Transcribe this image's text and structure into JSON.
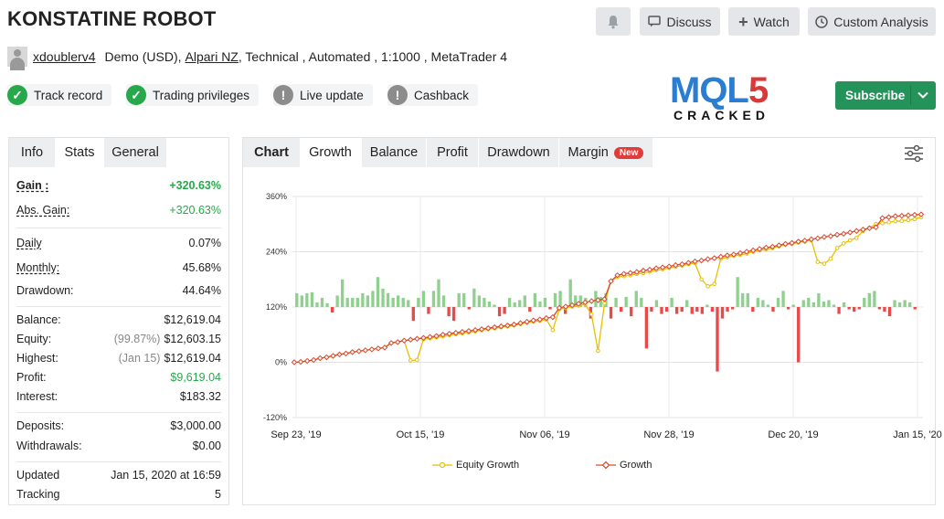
{
  "header": {
    "title": "KONSTATINE ROBOT",
    "discuss_label": "Discuss",
    "watch_label": "Watch",
    "custom_analysis_label": "Custom Analysis"
  },
  "meta": {
    "username": "xdoublerv4",
    "account_type": "Demo (USD),",
    "broker": "Alpari NZ",
    "details": ", Technical , Automated , 1:1000 , MetaTrader 4"
  },
  "badges": [
    {
      "label": "Track record",
      "status": "ok"
    },
    {
      "label": "Trading privileges",
      "status": "ok"
    },
    {
      "label": "Live update",
      "status": "warn"
    },
    {
      "label": "Cashback",
      "status": "warn"
    }
  ],
  "logo": {
    "top_text": "MQL5",
    "bottom_text": "CRACKED",
    "color": "#2a7dd1",
    "accent": "#d73a3a"
  },
  "subscribe_label": "Subscribe",
  "stats_tabs": [
    "Info",
    "Stats",
    "General"
  ],
  "stats": {
    "gain_label": "Gain :",
    "gain_value": "+320.63%",
    "abs_gain_label": "Abs. Gain:",
    "abs_gain_value": "+320.63%",
    "daily_label": "Daily",
    "daily_value": "0.07%",
    "monthly_label": "Monthly:",
    "monthly_value": "45.68%",
    "drawdown_label": "Drawdown:",
    "drawdown_value": "44.64%",
    "balance_label": "Balance:",
    "balance_value": "$12,619.04",
    "equity_label": "Equity:",
    "equity_pct": "(99.87%)",
    "equity_value": "$12,603.15",
    "highest_label": "Highest:",
    "highest_date": "(Jan 15)",
    "highest_value": "$12,619.04",
    "profit_label": "Profit:",
    "profit_value": "$9,619.04",
    "interest_label": "Interest:",
    "interest_value": "$183.32",
    "deposits_label": "Deposits:",
    "deposits_value": "$3,000.00",
    "withdrawals_label": "Withdrawals:",
    "withdrawals_value": "$0.00",
    "updated_label": "Updated",
    "updated_value": "Jan 15, 2020 at 16:59",
    "tracking_label": "Tracking",
    "tracking_value": "5"
  },
  "chart_tabs": [
    "Chart",
    "Growth",
    "Balance",
    "Profit",
    "Drawdown",
    "Margin"
  ],
  "margin_new_badge": "New",
  "chart_data": {
    "type": "line",
    "y_ticks": [
      "360%",
      "240%",
      "120%",
      "0%",
      "-120%"
    ],
    "ylim": [
      -120,
      360
    ],
    "x_ticks": [
      "Sep 23, '19",
      "Oct 15, '19",
      "Nov 06, '19",
      "Nov 28, '19",
      "Dec 20, '19",
      "Jan 15, '20"
    ],
    "series": [
      {
        "name": "Equity Growth",
        "color": "#e8c000",
        "values": [
          0,
          1,
          3,
          5,
          9,
          11,
          14,
          17,
          19,
          22,
          24,
          26,
          28,
          30,
          32,
          42,
          44,
          47,
          4,
          5,
          50,
          52,
          54,
          56,
          59,
          61,
          63,
          65,
          67,
          70,
          72,
          74,
          76,
          78,
          80,
          83,
          86,
          88,
          90,
          93,
          70,
          115,
          118,
          121,
          123,
          126,
          104,
          25,
          128,
          176,
          185,
          187,
          189,
          192,
          194,
          197,
          200,
          202,
          205,
          207,
          210,
          213,
          215,
          180,
          165,
          170,
          225,
          228,
          231,
          233,
          236,
          240,
          243,
          245,
          248,
          252,
          255,
          257,
          260,
          262,
          265,
          218,
          214,
          225,
          248,
          258,
          265,
          270,
          285,
          292,
          300,
          302,
          304,
          306,
          307,
          309,
          311,
          315
        ]
      },
      {
        "name": "Growth",
        "color": "#d94a2e",
        "values": [
          0,
          1,
          3,
          5,
          9,
          11,
          14,
          17,
          19,
          22,
          24,
          26,
          28,
          30,
          32,
          42,
          44,
          47,
          49,
          51,
          53,
          55,
          57,
          60,
          62,
          64,
          66,
          68,
          70,
          72,
          74,
          76,
          78,
          80,
          82,
          85,
          88,
          91,
          93,
          96,
          98,
          118,
          121,
          124,
          127,
          130,
          133,
          135,
          137,
          176,
          189,
          192,
          194,
          196,
          199,
          201,
          204,
          206,
          208,
          211,
          213,
          216,
          219,
          221,
          224,
          226,
          229,
          232,
          234,
          237,
          240,
          243,
          246,
          249,
          251,
          254,
          257,
          259,
          262,
          264,
          267,
          269,
          272,
          274,
          277,
          279,
          282,
          285,
          288,
          291,
          293,
          313,
          315,
          317,
          318,
          319,
          320,
          321
        ]
      }
    ],
    "profit_bars": [
      30,
      25,
      30,
      32,
      10,
      20,
      8,
      -12,
      25,
      60,
      20,
      20,
      20,
      30,
      25,
      35,
      65,
      40,
      30,
      20,
      25,
      20,
      15,
      -30,
      20,
      35,
      -15,
      35,
      60,
      25,
      -20,
      -30,
      30,
      30,
      -5,
      40,
      25,
      20,
      12,
      5,
      -20,
      -15,
      20,
      10,
      15,
      25,
      -10,
      30,
      12,
      20,
      -5,
      30,
      35,
      -15,
      60,
      25,
      25,
      20,
      -25,
      35,
      22,
      30,
      -25,
      20,
      -10,
      22,
      -20,
      35,
      20,
      -90,
      -10,
      15,
      -15,
      -10,
      20,
      -15,
      -10,
      15,
      -15,
      -10,
      -15,
      5,
      -10,
      -140,
      -25,
      -10,
      -5,
      65,
      30,
      30,
      -10,
      20,
      15,
      5,
      -10,
      20,
      35,
      -5,
      5,
      -120,
      15,
      20,
      10,
      30,
      12,
      15,
      5,
      -15,
      10,
      -5,
      -10,
      -5,
      20,
      30,
      35,
      -5,
      -10,
      -20,
      15,
      10,
      15,
      10,
      -5
    ],
    "legend": [
      "Equity Growth",
      "Growth"
    ],
    "grid": true,
    "legend_position": "bottom"
  }
}
